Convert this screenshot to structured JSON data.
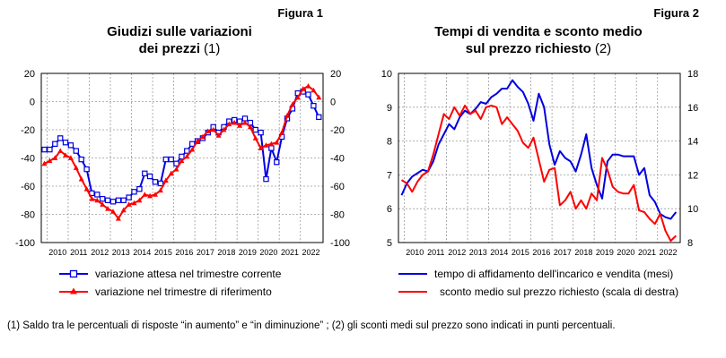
{
  "figure1": {
    "fig_label": "Figura 1",
    "title_line1": "Giudizi sulle variazioni",
    "title_line2": "dei prezzi",
    "title_note": "(1)"
  },
  "figure2": {
    "fig_label": "Figura 2",
    "title_line1": "Tempi di vendita e sconto medio",
    "title_line2": "sul prezzo richiesto",
    "title_note": "(2)"
  },
  "footnote": "(1) Saldo tra le percentuali di risposte “in aumento” e “in diminuzione” ; (2) gli sconti medi sul prezzo sono indicati in punti percentuali.",
  "colors": {
    "blue": "#0000e0",
    "red": "#ff0000",
    "grid": "#9a9a9a"
  },
  "chart_data": [
    {
      "type": "line",
      "x_categories": [
        "2010",
        "2011",
        "2012",
        "2013",
        "2014",
        "2015",
        "2016",
        "2017",
        "2018",
        "2019",
        "2020",
        "2021",
        "2022"
      ],
      "y_left_ticks": [
        "20",
        "0",
        "-20",
        "-40",
        "-60",
        "-80",
        "-100"
      ],
      "y_right_ticks": [
        "20",
        "0",
        "-20",
        "-40",
        "-60",
        "-80",
        "-100"
      ],
      "ylim": [
        -100,
        20
      ],
      "xlim": [
        2009.6,
        2022.95
      ],
      "grid": true,
      "legend_position": "bottom",
      "series": [
        {
          "name": "variazione attesa nel trimestre corrente",
          "color": "blue",
          "marker": "square",
          "points": [
            [
              2009.75,
              -34
            ],
            [
              2010.0,
              -34
            ],
            [
              2010.25,
              -30
            ],
            [
              2010.5,
              -26
            ],
            [
              2010.75,
              -29
            ],
            [
              2011.0,
              -31
            ],
            [
              2011.25,
              -35
            ],
            [
              2011.5,
              -41
            ],
            [
              2011.75,
              -48
            ],
            [
              2012.0,
              -65
            ],
            [
              2012.25,
              -66
            ],
            [
              2012.5,
              -69
            ],
            [
              2012.75,
              -70
            ],
            [
              2013.0,
              -71
            ],
            [
              2013.25,
              -70
            ],
            [
              2013.5,
              -70
            ],
            [
              2013.75,
              -68
            ],
            [
              2014.0,
              -64
            ],
            [
              2014.25,
              -62
            ],
            [
              2014.5,
              -51
            ],
            [
              2014.75,
              -53
            ],
            [
              2015.0,
              -57
            ],
            [
              2015.25,
              -58
            ],
            [
              2015.5,
              -41
            ],
            [
              2015.75,
              -41
            ],
            [
              2016.0,
              -44
            ],
            [
              2016.25,
              -39
            ],
            [
              2016.5,
              -35
            ],
            [
              2016.75,
              -30
            ],
            [
              2017.0,
              -28
            ],
            [
              2017.25,
              -26
            ],
            [
              2017.5,
              -22
            ],
            [
              2017.75,
              -18
            ],
            [
              2018.0,
              -22
            ],
            [
              2018.25,
              -18
            ],
            [
              2018.5,
              -14
            ],
            [
              2018.75,
              -13
            ],
            [
              2019.0,
              -14
            ],
            [
              2019.25,
              -12
            ],
            [
              2019.5,
              -15
            ],
            [
              2019.75,
              -20
            ],
            [
              2020.0,
              -22
            ],
            [
              2020.25,
              -55
            ],
            [
              2020.5,
              -33
            ],
            [
              2020.75,
              -43
            ],
            [
              2021.0,
              -25
            ],
            [
              2021.25,
              -12
            ],
            [
              2021.5,
              -5
            ],
            [
              2021.75,
              6
            ],
            [
              2022.0,
              7
            ],
            [
              2022.25,
              5
            ],
            [
              2022.5,
              -3
            ],
            [
              2022.75,
              -11
            ]
          ]
        },
        {
          "name": "variazione nel trimestre di riferimento",
          "color": "red",
          "marker": "triangle",
          "points": [
            [
              2009.75,
              -44
            ],
            [
              2010.0,
              -42
            ],
            [
              2010.25,
              -40
            ],
            [
              2010.5,
              -35
            ],
            [
              2010.75,
              -38
            ],
            [
              2011.0,
              -40
            ],
            [
              2011.25,
              -47
            ],
            [
              2011.5,
              -55
            ],
            [
              2011.75,
              -62
            ],
            [
              2012.0,
              -69
            ],
            [
              2012.25,
              -70
            ],
            [
              2012.5,
              -73
            ],
            [
              2012.75,
              -76
            ],
            [
              2013.0,
              -78
            ],
            [
              2013.25,
              -83
            ],
            [
              2013.5,
              -77
            ],
            [
              2013.75,
              -73
            ],
            [
              2014.0,
              -72
            ],
            [
              2014.25,
              -70
            ],
            [
              2014.5,
              -66
            ],
            [
              2014.75,
              -67
            ],
            [
              2015.0,
              -66
            ],
            [
              2015.25,
              -63
            ],
            [
              2015.5,
              -56
            ],
            [
              2015.75,
              -51
            ],
            [
              2016.0,
              -48
            ],
            [
              2016.25,
              -42
            ],
            [
              2016.5,
              -39
            ],
            [
              2016.75,
              -34
            ],
            [
              2017.0,
              -28
            ],
            [
              2017.25,
              -25
            ],
            [
              2017.5,
              -21
            ],
            [
              2017.75,
              -20
            ],
            [
              2018.0,
              -24
            ],
            [
              2018.25,
              -20
            ],
            [
              2018.5,
              -16
            ],
            [
              2018.75,
              -15
            ],
            [
              2019.0,
              -17
            ],
            [
              2019.25,
              -15
            ],
            [
              2019.5,
              -18
            ],
            [
              2019.75,
              -26
            ],
            [
              2020.0,
              -33
            ],
            [
              2020.25,
              -31
            ],
            [
              2020.5,
              -30
            ],
            [
              2020.75,
              -29
            ],
            [
              2021.0,
              -22
            ],
            [
              2021.25,
              -10
            ],
            [
              2021.5,
              -2
            ],
            [
              2021.75,
              3
            ],
            [
              2022.0,
              9
            ],
            [
              2022.25,
              11
            ],
            [
              2022.5,
              8
            ],
            [
              2022.75,
              3
            ]
          ]
        }
      ]
    },
    {
      "type": "line",
      "x_categories": [
        "2010",
        "2011",
        "2012",
        "2013",
        "2014",
        "2015",
        "2016",
        "2017",
        "2018",
        "2019",
        "2020",
        "2021",
        "2022"
      ],
      "y_left_ticks": [
        "10",
        "9",
        "8",
        "7",
        "6",
        "5"
      ],
      "y_right_ticks": [
        "18",
        "16",
        "14",
        "12",
        "10",
        "8"
      ],
      "ylim": [
        5,
        10
      ],
      "y2lim": [
        8,
        18
      ],
      "xlim": [
        2009.6,
        2022.95
      ],
      "grid": true,
      "legend_position": "bottom",
      "series": [
        {
          "name": "tempo di affidamento dell'incarico e vendita (mesi)",
          "color": "blue",
          "axis": "left",
          "points": [
            [
              2009.75,
              6.4
            ],
            [
              2010.0,
              6.75
            ],
            [
              2010.25,
              6.95
            ],
            [
              2010.5,
              7.05
            ],
            [
              2010.75,
              7.15
            ],
            [
              2011.0,
              7.1
            ],
            [
              2011.25,
              7.4
            ],
            [
              2011.5,
              7.9
            ],
            [
              2011.75,
              8.2
            ],
            [
              2012.0,
              8.5
            ],
            [
              2012.25,
              8.35
            ],
            [
              2012.5,
              8.7
            ],
            [
              2012.75,
              8.9
            ],
            [
              2013.0,
              8.8
            ],
            [
              2013.25,
              8.95
            ],
            [
              2013.5,
              9.15
            ],
            [
              2013.75,
              9.1
            ],
            [
              2014.0,
              9.3
            ],
            [
              2014.25,
              9.4
            ],
            [
              2014.5,
              9.55
            ],
            [
              2014.75,
              9.55
            ],
            [
              2015.0,
              9.8
            ],
            [
              2015.25,
              9.6
            ],
            [
              2015.5,
              9.45
            ],
            [
              2015.75,
              9.1
            ],
            [
              2016.0,
              8.6
            ],
            [
              2016.25,
              9.4
            ],
            [
              2016.5,
              9.0
            ],
            [
              2016.75,
              7.9
            ],
            [
              2017.0,
              7.3
            ],
            [
              2017.25,
              7.7
            ],
            [
              2017.5,
              7.5
            ],
            [
              2017.75,
              7.4
            ],
            [
              2018.0,
              7.1
            ],
            [
              2018.25,
              7.6
            ],
            [
              2018.5,
              8.2
            ],
            [
              2018.75,
              7.2
            ],
            [
              2019.0,
              6.7
            ],
            [
              2019.25,
              6.3
            ],
            [
              2019.5,
              7.4
            ],
            [
              2019.75,
              7.6
            ],
            [
              2020.0,
              7.6
            ],
            [
              2020.25,
              7.55
            ],
            [
              2020.5,
              7.55
            ],
            [
              2020.75,
              7.55
            ],
            [
              2021.0,
              7.0
            ],
            [
              2021.25,
              7.2
            ],
            [
              2021.5,
              6.4
            ],
            [
              2021.75,
              6.2
            ],
            [
              2022.0,
              5.85
            ],
            [
              2022.25,
              5.75
            ],
            [
              2022.5,
              5.7
            ],
            [
              2022.75,
              5.9
            ]
          ]
        },
        {
          "name": "sconto medio sul prezzo richiesto (scala di destra)",
          "color": "red",
          "axis": "right",
          "points": [
            [
              2009.75,
              11.7
            ],
            [
              2010.0,
              11.5
            ],
            [
              2010.25,
              11.0
            ],
            [
              2010.5,
              11.6
            ],
            [
              2010.75,
              12.0
            ],
            [
              2011.0,
              12.2
            ],
            [
              2011.25,
              13.2
            ],
            [
              2011.5,
              14.4
            ],
            [
              2011.75,
              15.6
            ],
            [
              2012.0,
              15.3
            ],
            [
              2012.25,
              16.0
            ],
            [
              2012.5,
              15.5
            ],
            [
              2012.75,
              16.1
            ],
            [
              2013.0,
              15.6
            ],
            [
              2013.25,
              15.8
            ],
            [
              2013.5,
              15.3
            ],
            [
              2013.75,
              16.0
            ],
            [
              2014.0,
              16.1
            ],
            [
              2014.25,
              16.0
            ],
            [
              2014.5,
              15.0
            ],
            [
              2014.75,
              15.4
            ],
            [
              2015.0,
              15.0
            ],
            [
              2015.25,
              14.6
            ],
            [
              2015.5,
              13.9
            ],
            [
              2015.75,
              13.6
            ],
            [
              2016.0,
              14.2
            ],
            [
              2016.25,
              12.9
            ],
            [
              2016.5,
              11.6
            ],
            [
              2016.75,
              12.3
            ],
            [
              2017.0,
              12.4
            ],
            [
              2017.25,
              10.2
            ],
            [
              2017.5,
              10.5
            ],
            [
              2017.75,
              11.0
            ],
            [
              2018.0,
              10.0
            ],
            [
              2018.25,
              10.5
            ],
            [
              2018.5,
              10.0
            ],
            [
              2018.75,
              10.9
            ],
            [
              2019.0,
              10.5
            ],
            [
              2019.25,
              13.0
            ],
            [
              2019.5,
              12.3
            ],
            [
              2019.75,
              11.3
            ],
            [
              2020.0,
              11.0
            ],
            [
              2020.25,
              10.9
            ],
            [
              2020.5,
              10.9
            ],
            [
              2020.75,
              11.4
            ],
            [
              2021.0,
              9.9
            ],
            [
              2021.25,
              9.8
            ],
            [
              2021.5,
              9.4
            ],
            [
              2021.75,
              9.1
            ],
            [
              2022.0,
              9.7
            ],
            [
              2022.25,
              8.7
            ],
            [
              2022.5,
              8.1
            ],
            [
              2022.75,
              8.4
            ]
          ]
        }
      ]
    }
  ]
}
